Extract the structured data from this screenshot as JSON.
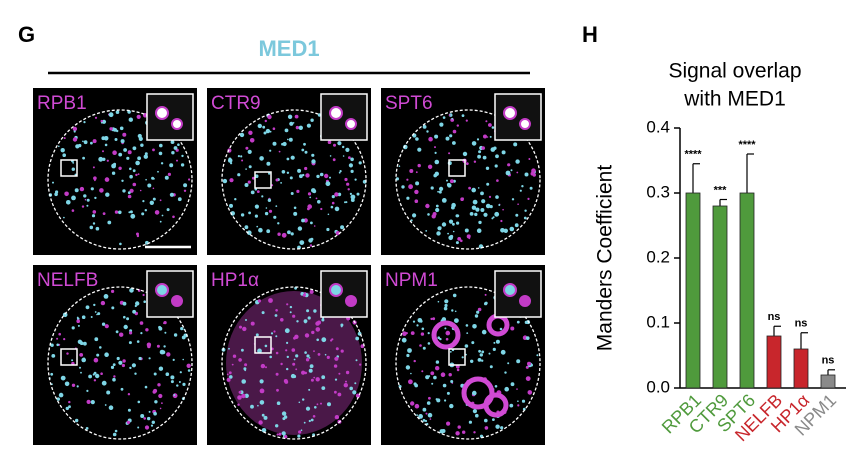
{
  "panel_labels": [
    "G",
    "H"
  ],
  "image_panel": {
    "header": "MED1",
    "images": [
      "RPB1",
      "CTR9",
      "SPT6",
      "NELFB",
      "HP1α",
      "NPM1"
    ]
  },
  "chart_data": {
    "type": "bar",
    "title": [
      "Signal overlap",
      "with MED1"
    ],
    "ylabel": "Manders Coefficient",
    "categories": [
      "RPB1",
      "CTR9",
      "SPT6",
      "NELFB",
      "HP1α",
      "NPM1"
    ],
    "values": [
      0.3,
      0.28,
      0.3,
      0.08,
      0.06,
      0.02
    ],
    "errors": [
      0.045,
      0.01,
      0.06,
      0.015,
      0.025,
      0.008
    ],
    "annotations": [
      "****",
      "***",
      "****",
      "ns",
      "ns",
      "ns"
    ],
    "colors": [
      "#4f9a3c",
      "#4f9a3c",
      "#4f9a3c",
      "#c8262c",
      "#c8262c",
      "#8a8a8a"
    ],
    "ylim": [
      0,
      0.4
    ],
    "yticks": [
      {
        "value": 0,
        "label": "0.0"
      },
      0.1,
      0.2,
      0.3,
      0.4
    ]
  }
}
